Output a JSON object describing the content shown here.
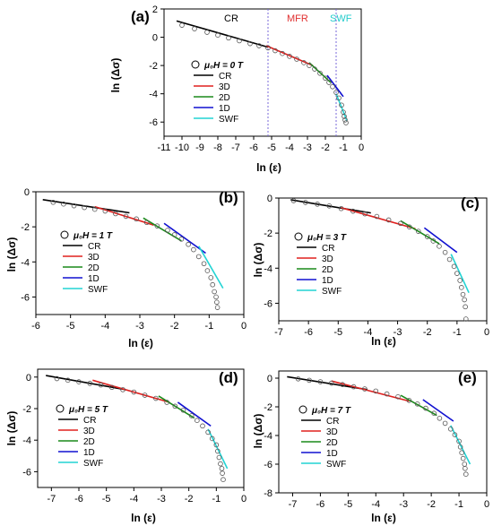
{
  "figure": {
    "panels": [
      {
        "letter": "(a)",
        "field_label": "μ₀H = 0 T",
        "xlabel": "ln (ε)",
        "ylabel": "ln (Δσ)",
        "xticks": [
          "-11",
          "-10",
          "-9",
          "-8",
          "-7",
          "-6",
          "-5",
          "-4",
          "-3",
          "-2",
          "-1",
          "0"
        ],
        "yticks": [
          "2",
          "0",
          "-2",
          "-4",
          "-6"
        ],
        "region_labels": [
          {
            "text": "CR",
            "color": "#000000"
          },
          {
            "text": "MFR",
            "color": "#e03030"
          },
          {
            "text": "SWF",
            "color": "#22cccc"
          }
        ]
      },
      {
        "letter": "(b)",
        "field_label": "μ₀H = 1 T",
        "xlabel": "ln (ε)",
        "ylabel": "ln (Δσ)",
        "xticks": [
          "-6",
          "-5",
          "-4",
          "-3",
          "-2",
          "-1",
          "0"
        ],
        "yticks": [
          "0",
          "-2",
          "-4",
          "-6"
        ]
      },
      {
        "letter": "(c)",
        "field_label": "μ₀H = 3 T",
        "xlabel": "ln (ε)",
        "ylabel": "ln (Δσ)",
        "xticks": [
          "-7",
          "-6",
          "-5",
          "-4",
          "-3",
          "-2",
          "-1",
          "0"
        ],
        "yticks": [
          "0",
          "-2",
          "-4",
          "-6"
        ]
      },
      {
        "letter": "(d)",
        "field_label": "μ₀H = 5 T",
        "xlabel": "ln (ε)",
        "ylabel": "ln (Δσ)",
        "xticks": [
          "-7",
          "-6",
          "-5",
          "-4",
          "-3",
          "-2",
          "-1",
          "0"
        ],
        "yticks": [
          "0",
          "-2",
          "-4",
          "-6"
        ]
      },
      {
        "letter": "(e)",
        "field_label": "μ₀H = 7 T",
        "xlabel": "ln (ε)",
        "ylabel": "ln (Δσ)",
        "xticks": [
          "-7",
          "-6",
          "-5",
          "-4",
          "-3",
          "-2",
          "-1",
          "0"
        ],
        "yticks": [
          "0",
          "-2",
          "-4",
          "-6",
          "-8"
        ]
      }
    ],
    "legend_entries": [
      "CR",
      "3D",
      "2D",
      "1D",
      "SWF"
    ]
  },
  "colors": {
    "data_marker": "#555555",
    "CR": "#000000",
    "3D": "#e0201e",
    "2D": "#1a8a1a",
    "1D": "#1010d0",
    "SWF": "#22d4d4",
    "region_divider": "#7a6ad8"
  },
  "chart_data": [
    {
      "type": "scatter",
      "panel": "(a)",
      "xlim": [
        -11,
        0
      ],
      "ylim": [
        -7,
        2
      ],
      "region_boundaries_x": [
        -5.2,
        -1.4
      ],
      "data": {
        "name": "",
        "x": [
          -10.0,
          -9.3,
          -8.6,
          -8.0,
          -7.4,
          -6.8,
          -6.2,
          -5.7,
          -5.2,
          -4.8,
          -4.4,
          -4.0,
          -3.6,
          -3.2,
          -2.9,
          -2.6,
          -2.3,
          -2.0,
          -1.8,
          -1.6,
          -1.4,
          -1.25,
          -1.1,
          -1.0,
          -0.95,
          -0.9,
          -0.85
        ],
        "y": [
          0.85,
          0.6,
          0.35,
          0.15,
          -0.05,
          -0.25,
          -0.45,
          -0.6,
          -0.75,
          -0.95,
          -1.15,
          -1.35,
          -1.55,
          -1.8,
          -2.0,
          -2.25,
          -2.55,
          -2.9,
          -3.2,
          -3.5,
          -3.9,
          -4.3,
          -4.8,
          -5.3,
          -5.6,
          -5.85,
          -6.05
        ]
      },
      "fits": [
        {
          "name": "CR",
          "x": [
            -10.3,
            -5.2
          ],
          "y": [
            1.15,
            -0.7
          ]
        },
        {
          "name": "3D",
          "x": [
            -5.3,
            -2.7
          ],
          "y": [
            -0.6,
            -2.0
          ]
        },
        {
          "name": "2D",
          "x": [
            -2.9,
            -1.7
          ],
          "y": [
            -1.8,
            -3.2
          ]
        },
        {
          "name": "1D",
          "x": [
            -1.9,
            -1.0
          ],
          "y": [
            -2.7,
            -4.2
          ]
        },
        {
          "name": "SWF",
          "x": [
            -1.4,
            -0.8
          ],
          "y": [
            -4.0,
            -5.9
          ]
        }
      ]
    },
    {
      "type": "scatter",
      "panel": "(b)",
      "xlim": [
        -6,
        0
      ],
      "ylim": [
        -7,
        0
      ],
      "data": {
        "name": "",
        "x": [
          -5.5,
          -5.2,
          -4.9,
          -4.6,
          -4.3,
          -4.0,
          -3.7,
          -3.4,
          -3.1,
          -2.8,
          -2.5,
          -2.2,
          -2.0,
          -1.8,
          -1.6,
          -1.45,
          -1.3,
          -1.15,
          -1.05,
          -0.95,
          -0.9,
          -0.85,
          -0.8,
          -0.78,
          -0.76
        ],
        "y": [
          -0.6,
          -0.7,
          -0.8,
          -0.9,
          -1.0,
          -1.1,
          -1.25,
          -1.4,
          -1.55,
          -1.75,
          -1.95,
          -2.2,
          -2.45,
          -2.7,
          -3.0,
          -3.3,
          -3.7,
          -4.1,
          -4.5,
          -4.9,
          -5.3,
          -5.7,
          -6.0,
          -6.3,
          -6.6
        ]
      },
      "fits": [
        {
          "name": "CR",
          "x": [
            -5.8,
            -3.3
          ],
          "y": [
            -0.45,
            -1.2
          ]
        },
        {
          "name": "3D",
          "x": [
            -4.3,
            -2.6
          ],
          "y": [
            -0.85,
            -1.9
          ]
        },
        {
          "name": "2D",
          "x": [
            -2.9,
            -1.8
          ],
          "y": [
            -1.5,
            -2.8
          ]
        },
        {
          "name": "1D",
          "x": [
            -2.3,
            -1.1
          ],
          "y": [
            -1.8,
            -3.5
          ]
        },
        {
          "name": "SWF",
          "x": [
            -1.3,
            -0.6
          ],
          "y": [
            -3.1,
            -5.5
          ]
        }
      ]
    },
    {
      "type": "scatter",
      "panel": "(c)",
      "xlim": [
        -7,
        0
      ],
      "ylim": [
        -7,
        0
      ],
      "data": {
        "name": "",
        "x": [
          -6.5,
          -6.1,
          -5.7,
          -5.3,
          -4.9,
          -4.5,
          -4.1,
          -3.7,
          -3.3,
          -2.9,
          -2.6,
          -2.3,
          -2.0,
          -1.8,
          -1.6,
          -1.4,
          -1.25,
          -1.1,
          -1.0,
          -0.9,
          -0.85,
          -0.8,
          -0.75,
          -0.72,
          -0.7
        ],
        "y": [
          -0.15,
          -0.25,
          -0.35,
          -0.45,
          -0.6,
          -0.75,
          -0.9,
          -1.05,
          -1.25,
          -1.45,
          -1.65,
          -1.9,
          -2.2,
          -2.45,
          -2.75,
          -3.1,
          -3.5,
          -3.9,
          -4.3,
          -4.7,
          -5.1,
          -5.5,
          -5.8,
          -6.2,
          -6.9
        ]
      },
      "fits": [
        {
          "name": "CR",
          "x": [
            -6.6,
            -3.9
          ],
          "y": [
            -0.1,
            -0.85
          ]
        },
        {
          "name": "3D",
          "x": [
            -4.9,
            -2.4
          ],
          "y": [
            -0.55,
            -1.75
          ]
        },
        {
          "name": "2D",
          "x": [
            -2.9,
            -1.6
          ],
          "y": [
            -1.3,
            -2.6
          ]
        },
        {
          "name": "1D",
          "x": [
            -2.1,
            -1.0
          ],
          "y": [
            -1.7,
            -3.1
          ]
        },
        {
          "name": "SWF",
          "x": [
            -1.2,
            -0.6
          ],
          "y": [
            -3.2,
            -5.4
          ]
        }
      ]
    },
    {
      "type": "scatter",
      "panel": "(d)",
      "xlim": [
        -7.5,
        0
      ],
      "ylim": [
        -7,
        0.5
      ],
      "data": {
        "name": "",
        "x": [
          -6.8,
          -6.4,
          -6.0,
          -5.6,
          -5.2,
          -4.8,
          -4.4,
          -4.0,
          -3.6,
          -3.2,
          -2.8,
          -2.5,
          -2.2,
          -1.9,
          -1.7,
          -1.5,
          -1.3,
          -1.15,
          -1.0,
          -0.95,
          -0.9,
          -0.85,
          -0.8,
          -0.78,
          -0.75
        ],
        "y": [
          -0.1,
          -0.2,
          -0.3,
          -0.4,
          -0.5,
          -0.65,
          -0.8,
          -0.95,
          -1.15,
          -1.35,
          -1.6,
          -1.85,
          -2.1,
          -2.45,
          -2.75,
          -3.1,
          -3.5,
          -3.9,
          -4.3,
          -4.7,
          -5.1,
          -5.5,
          -5.8,
          -6.1,
          -6.5
        ]
      },
      "fits": [
        {
          "name": "CR",
          "x": [
            -7.2,
            -4.3
          ],
          "y": [
            0.1,
            -0.8
          ]
        },
        {
          "name": "3D",
          "x": [
            -5.5,
            -2.7
          ],
          "y": [
            -0.2,
            -1.6
          ]
        },
        {
          "name": "2D",
          "x": [
            -3.1,
            -1.8
          ],
          "y": [
            -1.2,
            -2.6
          ]
        },
        {
          "name": "1D",
          "x": [
            -2.4,
            -1.2
          ],
          "y": [
            -1.6,
            -3.1
          ]
        },
        {
          "name": "SWF",
          "x": [
            -1.3,
            -0.6
          ],
          "y": [
            -3.3,
            -5.8
          ]
        }
      ]
    },
    {
      "type": "scatter",
      "panel": "(e)",
      "xlim": [
        -7.5,
        0
      ],
      "ylim": [
        -8,
        0.5
      ],
      "data": {
        "name": "",
        "x": [
          -6.8,
          -6.4,
          -6.0,
          -5.6,
          -5.2,
          -4.8,
          -4.4,
          -4.0,
          -3.6,
          -3.2,
          -2.8,
          -2.5,
          -2.2,
          -1.9,
          -1.7,
          -1.5,
          -1.3,
          -1.15,
          -1.0,
          -0.95,
          -0.9,
          -0.85,
          -0.8,
          -0.78,
          -0.75
        ],
        "y": [
          -0.05,
          -0.15,
          -0.25,
          -0.35,
          -0.45,
          -0.6,
          -0.75,
          -0.9,
          -1.1,
          -1.3,
          -1.55,
          -1.8,
          -2.1,
          -2.45,
          -2.8,
          -3.15,
          -3.55,
          -3.95,
          -4.4,
          -4.8,
          -5.2,
          -5.6,
          -6.0,
          -6.3,
          -6.7
        ]
      },
      "fits": [
        {
          "name": "CR",
          "x": [
            -7.2,
            -4.3
          ],
          "y": [
            0.1,
            -0.8
          ]
        },
        {
          "name": "3D",
          "x": [
            -5.6,
            -2.8
          ],
          "y": [
            -0.2,
            -1.6
          ]
        },
        {
          "name": "2D",
          "x": [
            -3.1,
            -1.8
          ],
          "y": [
            -1.2,
            -2.6
          ]
        },
        {
          "name": "1D",
          "x": [
            -2.3,
            -1.2
          ],
          "y": [
            -1.5,
            -3.0
          ]
        },
        {
          "name": "SWF",
          "x": [
            -1.3,
            -0.6
          ],
          "y": [
            -3.3,
            -6.0
          ]
        }
      ]
    }
  ]
}
